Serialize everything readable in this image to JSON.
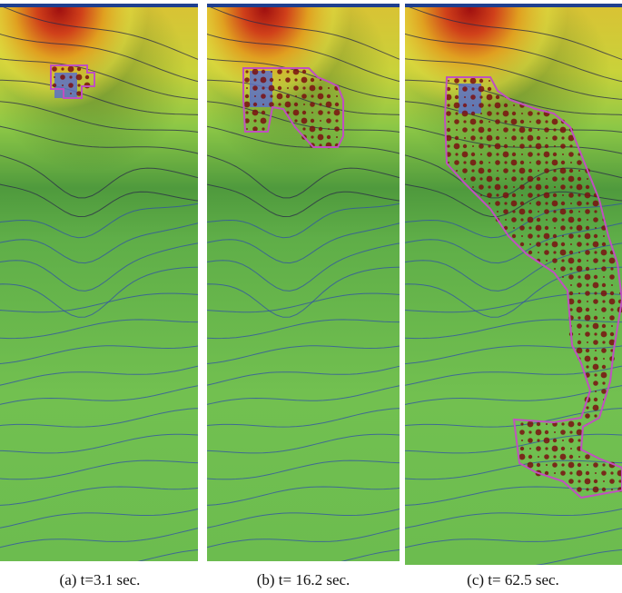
{
  "panels": [
    {
      "caption": "(a) t=3.1 sec."
    },
    {
      "caption": "(b) t= 16.2 sec."
    },
    {
      "caption": "(c) t= 62.5 sec."
    }
  ]
}
